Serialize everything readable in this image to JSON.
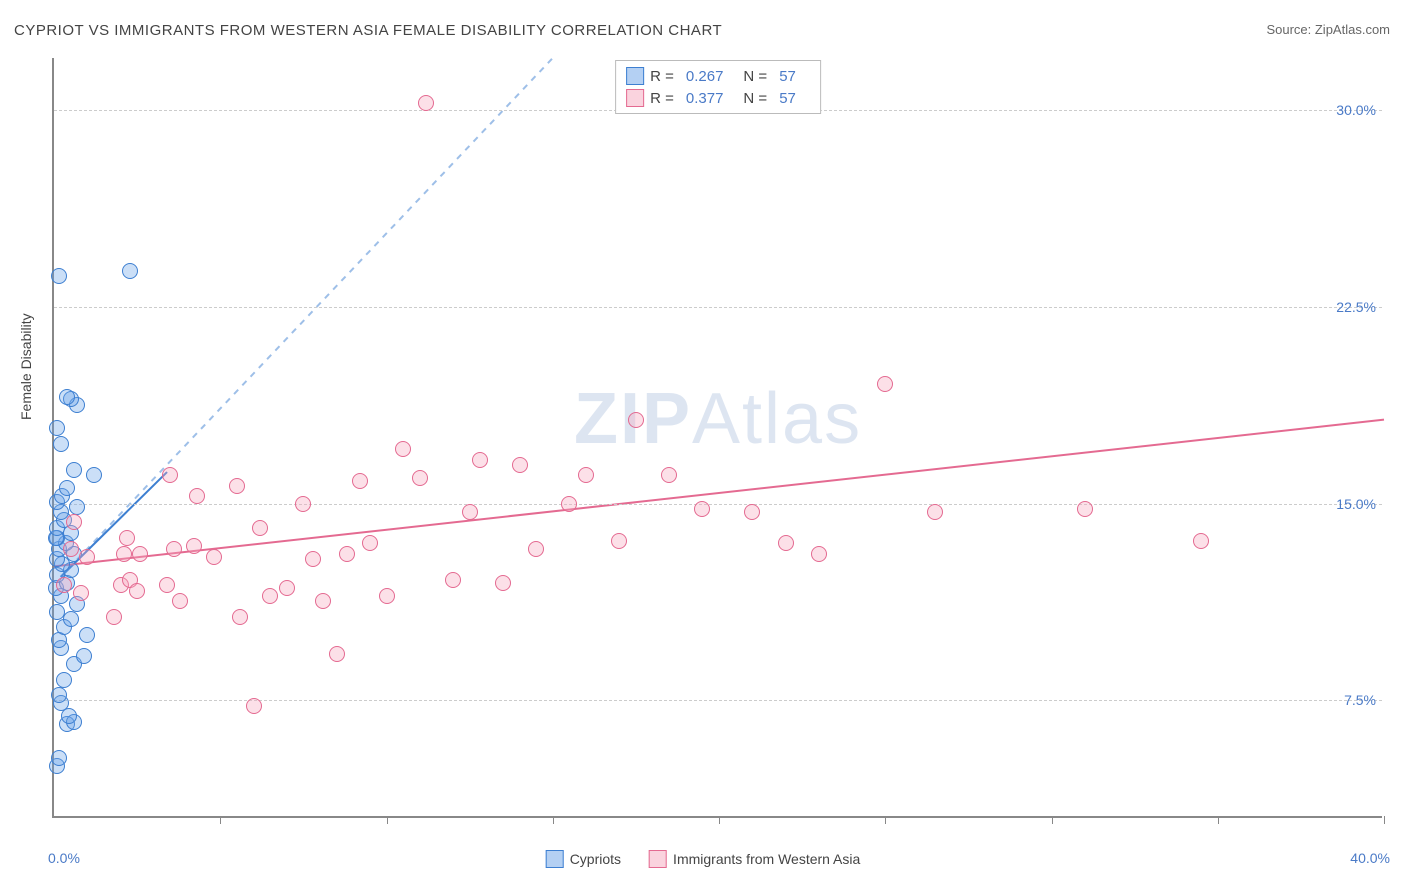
{
  "title": "CYPRIOT VS IMMIGRANTS FROM WESTERN ASIA FEMALE DISABILITY CORRELATION CHART",
  "source": "Source: ZipAtlas.com",
  "ylabel": "Female Disability",
  "watermark_prefix": "ZIP",
  "watermark_suffix": "Atlas",
  "chart": {
    "type": "scatter",
    "background_color": "#ffffff",
    "grid_color": "#cccccc",
    "grid_dash": "4 4",
    "xlim": [
      0.0,
      40.0
    ],
    "ylim": [
      3.0,
      32.0
    ],
    "xtick_positions": [
      5,
      10,
      15,
      20,
      25,
      30,
      35,
      40
    ],
    "yticks": [
      {
        "value": 7.5,
        "label": "7.5%"
      },
      {
        "value": 15.0,
        "label": "15.0%"
      },
      {
        "value": 22.5,
        "label": "22.5%"
      },
      {
        "value": 30.0,
        "label": "30.0%"
      }
    ],
    "xaxis_label_min": "0.0%",
    "xaxis_label_max": "40.0%",
    "marker_radius": 8,
    "marker_border_width": 1.5,
    "marker_fill_opacity": 0.35,
    "label_fontsize": 14,
    "title_fontsize": 15,
    "ytick_color": "#4a7ac7",
    "series": [
      {
        "id": "cypriots",
        "label": "Cypriots",
        "color": "#6aa2e8",
        "border_color": "#3d7fd1",
        "r_label": "R =",
        "r_value": "0.267",
        "n_label": "N =",
        "n_value": "57",
        "trend": {
          "solid": {
            "x1": 0.2,
            "y1": 12.2,
            "x2": 3.4,
            "y2": 16.2
          },
          "dash": {
            "x1": 0.2,
            "y1": 12.2,
            "x2": 15.0,
            "y2": 32.0
          },
          "stroke_width": 2
        },
        "points": [
          [
            0.1,
            4.9
          ],
          [
            0.15,
            5.2
          ],
          [
            0.4,
            6.5
          ],
          [
            0.6,
            6.6
          ],
          [
            0.45,
            6.8
          ],
          [
            0.2,
            7.3
          ],
          [
            0.15,
            7.6
          ],
          [
            0.3,
            8.2
          ],
          [
            0.6,
            8.8
          ],
          [
            0.9,
            9.1
          ],
          [
            0.2,
            9.4
          ],
          [
            0.15,
            9.7
          ],
          [
            1.0,
            9.9
          ],
          [
            0.3,
            10.2
          ],
          [
            0.5,
            10.5
          ],
          [
            0.1,
            10.8
          ],
          [
            0.7,
            11.1
          ],
          [
            0.2,
            11.4
          ],
          [
            0.05,
            11.7
          ],
          [
            0.4,
            11.9
          ],
          [
            0.1,
            12.2
          ],
          [
            0.5,
            12.4
          ],
          [
            0.25,
            12.6
          ],
          [
            0.1,
            12.8
          ],
          [
            0.6,
            13.0
          ],
          [
            0.15,
            13.2
          ],
          [
            0.35,
            13.4
          ],
          [
            0.08,
            13.6
          ],
          [
            0.05,
            13.6
          ],
          [
            0.5,
            13.8
          ],
          [
            0.1,
            14.0
          ],
          [
            0.3,
            14.3
          ],
          [
            0.2,
            14.6
          ],
          [
            0.7,
            14.8
          ],
          [
            0.1,
            15.0
          ],
          [
            0.25,
            15.2
          ],
          [
            0.4,
            15.5
          ],
          [
            1.2,
            16.0
          ],
          [
            0.6,
            16.2
          ],
          [
            0.2,
            17.2
          ],
          [
            0.1,
            17.8
          ],
          [
            0.7,
            18.7
          ],
          [
            0.5,
            18.9
          ],
          [
            0.4,
            19.0
          ],
          [
            0.15,
            23.6
          ],
          [
            2.3,
            23.8
          ]
        ]
      },
      {
        "id": "immigrants",
        "label": "Immigrants from Western Asia",
        "color": "#f5a7bd",
        "border_color": "#e46a91",
        "r_label": "R =",
        "r_value": "0.377",
        "n_label": "N =",
        "n_value": "57",
        "trend": {
          "solid": {
            "x1": 0.0,
            "y1": 12.6,
            "x2": 40.0,
            "y2": 18.2
          },
          "stroke_width": 2
        },
        "points": [
          [
            0.3,
            11.8
          ],
          [
            0.5,
            13.2
          ],
          [
            0.6,
            14.2
          ],
          [
            0.8,
            11.5
          ],
          [
            1.0,
            12.9
          ],
          [
            1.8,
            10.6
          ],
          [
            2.0,
            11.8
          ],
          [
            2.1,
            13.0
          ],
          [
            2.2,
            13.6
          ],
          [
            2.3,
            12.0
          ],
          [
            2.5,
            11.6
          ],
          [
            2.6,
            13.0
          ],
          [
            3.4,
            11.8
          ],
          [
            3.5,
            16.0
          ],
          [
            3.6,
            13.2
          ],
          [
            3.8,
            11.2
          ],
          [
            4.2,
            13.3
          ],
          [
            4.3,
            15.2
          ],
          [
            4.8,
            12.9
          ],
          [
            5.5,
            15.6
          ],
          [
            5.6,
            10.6
          ],
          [
            6.0,
            7.2
          ],
          [
            6.2,
            14.0
          ],
          [
            6.5,
            11.4
          ],
          [
            7.0,
            11.7
          ],
          [
            7.5,
            14.9
          ],
          [
            7.8,
            12.8
          ],
          [
            8.1,
            11.2
          ],
          [
            8.5,
            9.2
          ],
          [
            8.8,
            13.0
          ],
          [
            9.2,
            15.8
          ],
          [
            9.5,
            13.4
          ],
          [
            10.0,
            11.4
          ],
          [
            10.5,
            17.0
          ],
          [
            11.0,
            15.9
          ],
          [
            11.2,
            30.2
          ],
          [
            12.0,
            12.0
          ],
          [
            12.5,
            14.6
          ],
          [
            12.8,
            16.6
          ],
          [
            13.5,
            11.9
          ],
          [
            14.0,
            16.4
          ],
          [
            14.5,
            13.2
          ],
          [
            15.5,
            14.9
          ],
          [
            16.0,
            16.0
          ],
          [
            17.0,
            13.5
          ],
          [
            17.5,
            18.1
          ],
          [
            18.5,
            16.0
          ],
          [
            19.5,
            14.7
          ],
          [
            21.0,
            14.6
          ],
          [
            22.0,
            13.4
          ],
          [
            23.0,
            13.0
          ],
          [
            25.0,
            19.5
          ],
          [
            26.5,
            14.6
          ],
          [
            31.0,
            14.7
          ],
          [
            34.5,
            13.5
          ]
        ]
      }
    ]
  },
  "legend_bottom": [
    {
      "swatch": 0,
      "label": "Cypriots"
    },
    {
      "swatch": 1,
      "label": "Immigrants from Western Asia"
    }
  ]
}
